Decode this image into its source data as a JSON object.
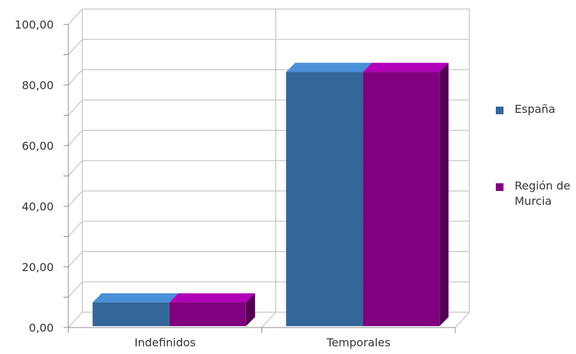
{
  "chart_data": {
    "type": "bar",
    "categories": [
      "Indefinidos",
      "Temporales"
    ],
    "series": [
      {
        "name": "España",
        "values": [
          8.55,
          91.45
        ],
        "color": "#336699"
      },
      {
        "name": "Región de Murcia",
        "values": [
          8.55,
          91.45
        ],
        "color": "#800080"
      }
    ],
    "ylim": [
      0,
      100
    ],
    "yticks": [
      "0,00",
      "20,00",
      "40,00",
      "60,00",
      "80,00",
      "100,00"
    ],
    "xlabel": "",
    "ylabel": "",
    "grid": true,
    "legend_position": "right",
    "three_d": true
  }
}
